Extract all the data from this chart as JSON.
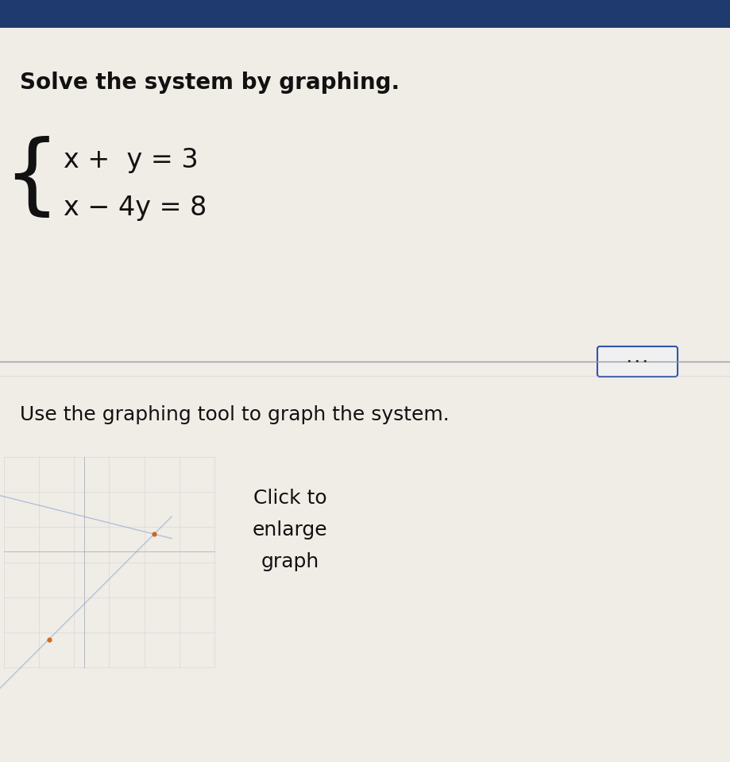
{
  "title": "Solve the system by graphing.",
  "eq1": "x +  y = 3",
  "eq2": "x − 4y = 8",
  "instruction": "Use the graphing tool to graph the system.",
  "click_line1": "Click to",
  "click_line2": "enlarge",
  "click_line3": "graph",
  "bg_color": "#e8e4de",
  "header_color": "#1e3a6e",
  "title_fontsize": 20,
  "eq_fontsize": 24,
  "instruction_fontsize": 18,
  "click_fontsize": 18,
  "line1_color": "#7799cc",
  "line2_color": "#7799cc",
  "dot_color": "#cc5500",
  "separator_color": "#9999aa",
  "button_fill": "#f0f0f0",
  "button_border": "#3355aa"
}
